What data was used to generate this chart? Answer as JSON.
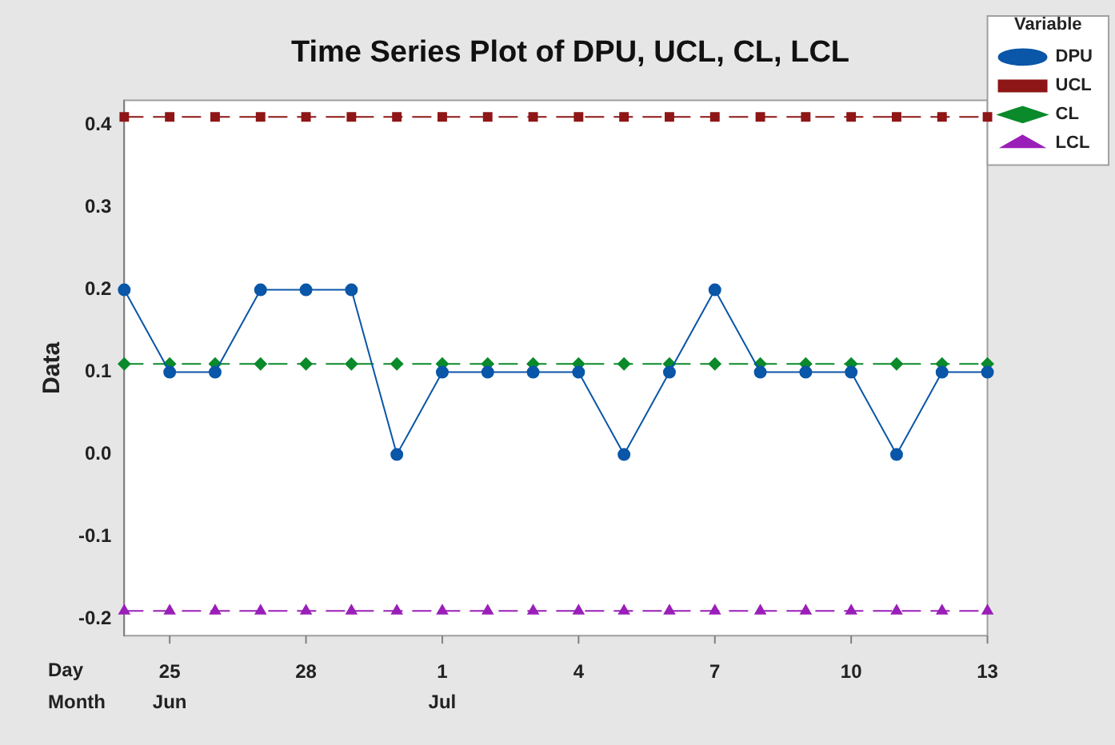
{
  "chart_data": {
    "type": "line",
    "title": "Time Series Plot of DPU, UCL, CL, LCL",
    "ylabel": "Data",
    "legend_title": "Variable",
    "legend": "right",
    "categories": [
      null,
      "25",
      null,
      null,
      "28",
      null,
      null,
      "1",
      null,
      null,
      "4",
      null,
      null,
      "7",
      null,
      null,
      "10",
      null,
      null,
      "13"
    ],
    "series": [
      {
        "name": "DPU",
        "color": "#0a56a8",
        "marker": "circle",
        "line_style": "solid",
        "values": [
          0.2,
          0.1,
          0.1,
          0.2,
          0.2,
          0.2,
          0.0,
          0.1,
          0.1,
          0.1,
          0.1,
          0.0,
          0.1,
          0.2,
          0.1,
          0.1,
          0.1,
          0.0,
          0.1,
          0.1
        ]
      },
      {
        "name": "UCL",
        "color": "#8e1616",
        "marker": "square",
        "line_style": "dashed",
        "values": [
          0.41,
          0.41,
          0.41,
          0.41,
          0.41,
          0.41,
          0.41,
          0.41,
          0.41,
          0.41,
          0.41,
          0.41,
          0.41,
          0.41,
          0.41,
          0.41,
          0.41,
          0.41,
          0.41,
          0.41
        ]
      },
      {
        "name": "CL",
        "color": "#0a8a2a",
        "marker": "diamond",
        "line_style": "dashed",
        "values": [
          0.11,
          0.11,
          0.11,
          0.11,
          0.11,
          0.11,
          0.11,
          0.11,
          0.11,
          0.11,
          0.11,
          0.11,
          0.11,
          0.11,
          0.11,
          0.11,
          0.11,
          0.11,
          0.11,
          0.11
        ]
      },
      {
        "name": "LCL",
        "color": "#9a1fb8",
        "marker": "triangle",
        "line_style": "dashed",
        "values": [
          -0.19,
          -0.19,
          -0.19,
          -0.19,
          -0.19,
          -0.19,
          -0.19,
          -0.19,
          -0.19,
          -0.19,
          -0.19,
          -0.19,
          -0.19,
          -0.19,
          -0.19,
          -0.19,
          -0.19,
          -0.19,
          -0.19,
          -0.19
        ]
      }
    ],
    "ylim": [
      -0.22,
      0.43
    ],
    "yticks": [
      -0.2,
      -0.1,
      {
        "value": 0,
        "label": "0.0"
      },
      0.1,
      0.2,
      0.3,
      0.4
    ],
    "annotations": [
      "Day",
      "Month",
      "Jun",
      "Jul"
    ]
  }
}
